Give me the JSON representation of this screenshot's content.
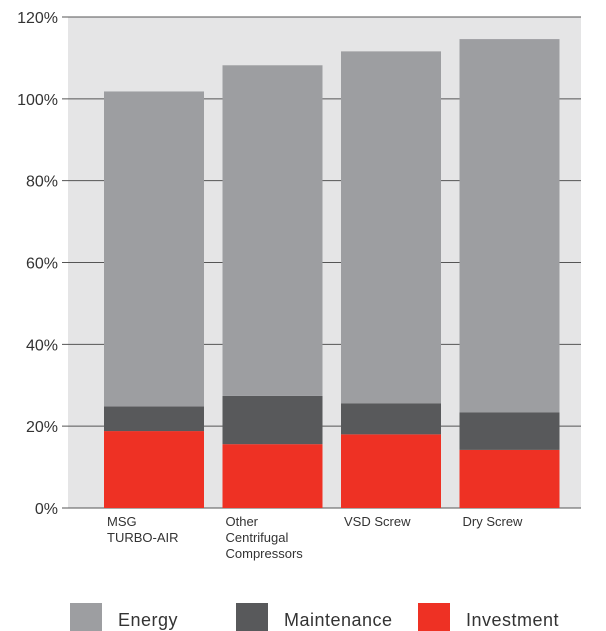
{
  "chart_data": {
    "type": "bar",
    "stacked": true,
    "categories": [
      [
        "MSG",
        "TURBO-AIR"
      ],
      [
        "Other",
        "Centrifugal",
        "Compressors"
      ],
      [
        "VSD Screw"
      ],
      [
        "Dry Screw"
      ]
    ],
    "series": [
      {
        "name": "Investment",
        "color": "#ee3124",
        "values": [
          18.8,
          15.6,
          18.0,
          14.2
        ]
      },
      {
        "name": "Maintenance",
        "color": "#58595b",
        "values": [
          6.0,
          11.8,
          7.6,
          9.2
        ]
      },
      {
        "name": "Energy",
        "color": "#9d9ea1",
        "values": [
          77.0,
          80.8,
          86.0,
          91.2
        ]
      }
    ],
    "legend_order": [
      "Energy",
      "Maintenance",
      "Investment"
    ],
    "legend_placement": "bottom",
    "ylim": [
      0,
      120
    ],
    "yticks": [
      "0%",
      "20%",
      "40%",
      "60%",
      "80%",
      "100%",
      "120%"
    ],
    "grid": true,
    "plot_background": "#e5e5e6",
    "title": "",
    "xlabel": "",
    "ylabel": ""
  }
}
